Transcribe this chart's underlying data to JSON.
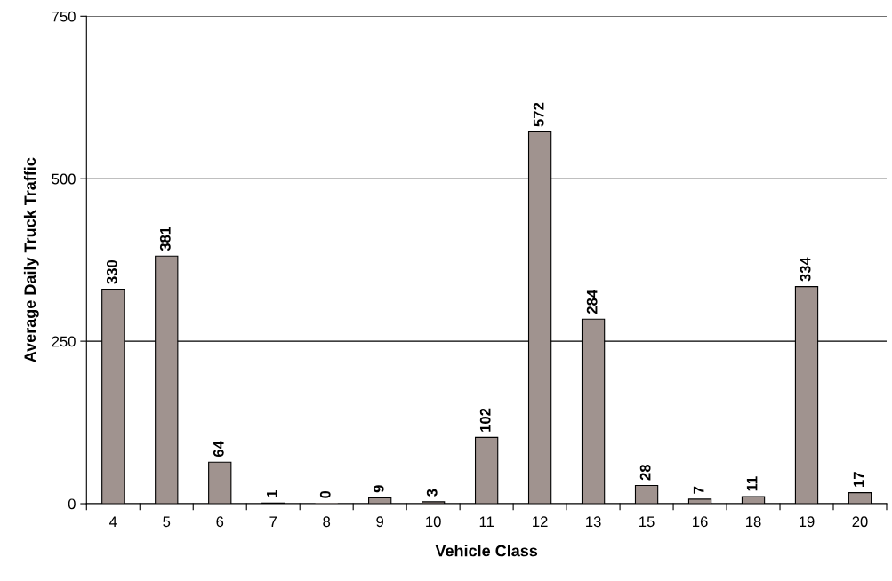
{
  "chart_data": {
    "type": "bar",
    "xlabel": "Vehicle Class",
    "ylabel": "Average Daily Truck Traffic",
    "categories": [
      "4",
      "5",
      "6",
      "7",
      "8",
      "9",
      "10",
      "11",
      "12",
      "13",
      "15",
      "16",
      "18",
      "19",
      "20"
    ],
    "values": [
      330,
      381,
      64,
      1,
      0,
      9,
      3,
      102,
      572,
      284,
      28,
      7,
      11,
      334,
      17
    ],
    "color": "#a0938f",
    "ylim": [
      0,
      750
    ],
    "yticks": [
      0,
      250,
      500,
      750
    ],
    "grid": "y",
    "data_labels": true
  }
}
